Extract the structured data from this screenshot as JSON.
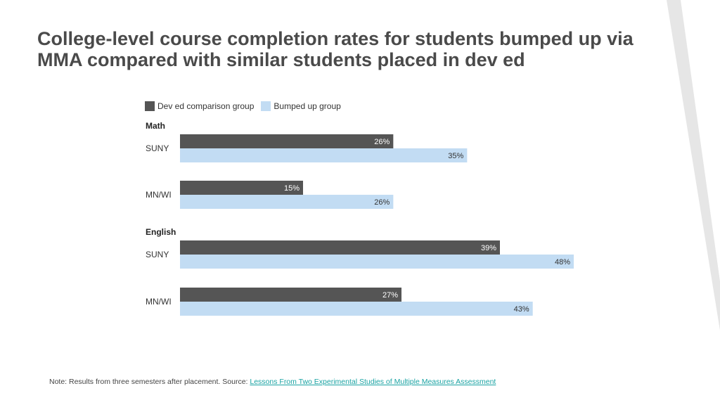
{
  "title": "College-level course completion rates for students bumped up via MMA compared with similar students placed in dev ed",
  "colors": {
    "dev_ed": "#555555",
    "bumped_up": "#c2dcf3",
    "stripe": "#e6e6e6",
    "link": "#1aa3a3"
  },
  "legend": [
    {
      "label": "Dev ed comparison group",
      "color": "#555555"
    },
    {
      "label": "Bumped up group",
      "color": "#c2dcf3"
    }
  ],
  "chart_data": {
    "type": "bar",
    "orientation": "horizontal",
    "groups": [
      {
        "name": "Math",
        "categories": [
          "SUNY",
          "MN/WI"
        ]
      },
      {
        "name": "English",
        "categories": [
          "SUNY",
          "MN/WI"
        ]
      }
    ],
    "categories": [
      "SUNY",
      "MN/WI",
      "SUNY",
      "MN/WI"
    ],
    "series": [
      {
        "name": "Dev ed comparison group",
        "values": [
          26,
          15,
          39,
          27
        ],
        "labels": [
          "26%",
          "15%",
          "39%",
          "27%"
        ]
      },
      {
        "name": "Bumped up group",
        "values": [
          35,
          26,
          48,
          43
        ],
        "labels": [
          "35%",
          "26%",
          "48%",
          "43%"
        ]
      }
    ],
    "xlim": [
      0,
      48
    ],
    "grid": false,
    "legend_position": "top-left"
  },
  "note": {
    "text": "Note: Results from three semesters after placement. Source: ",
    "link_text": "Lessons From Two Experimental Studies of Multiple Measures Assessment"
  }
}
